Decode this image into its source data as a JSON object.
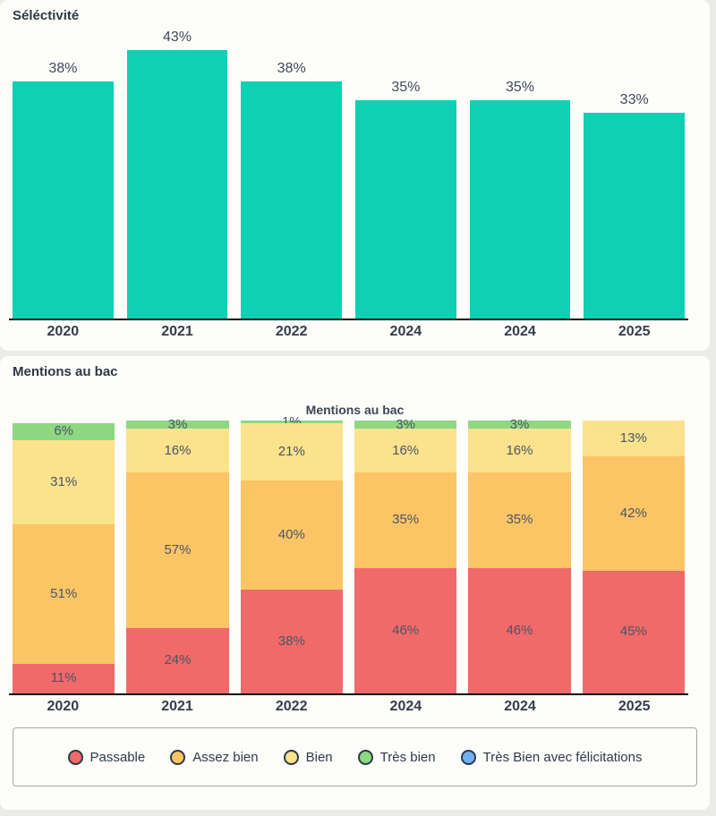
{
  "colors": {
    "page_background": "#ebebe9",
    "card_background": "#fdfdfa",
    "teal": "#0fd0b3",
    "red": "#f06a6a",
    "orange": "#fbc566",
    "yellow": "#fce28c",
    "green": "#8fd783",
    "blue": "#6fb1f1",
    "axis": "#0a0a0a",
    "value_label": "#4b5563",
    "year_label": "#333d4c"
  },
  "selectivity_section": {
    "title": "Séléctivité"
  },
  "mentions_section": {
    "title": "Mentions au bac",
    "chart_title": "Mentions au bac"
  },
  "chart_data": [
    {
      "type": "bar",
      "title": "Séléctivité",
      "categories": [
        "2020",
        "2021",
        "2022",
        "2024",
        "2024",
        "2025"
      ],
      "values": [
        38,
        43,
        38,
        35,
        35,
        33
      ],
      "unit": "%",
      "bar_color": "#0fd0b3",
      "ylim": [
        0,
        43
      ],
      "grid": false,
      "data_labels": "above bars"
    },
    {
      "type": "bar",
      "stacked": true,
      "stack_mode": "percent",
      "title": "Mentions au bac",
      "categories": [
        "2020",
        "2021",
        "2022",
        "2024",
        "2024",
        "2025"
      ],
      "series": [
        {
          "name": "Passable",
          "color": "#f06a6a",
          "values": [
            11,
            24,
            38,
            46,
            46,
            45
          ]
        },
        {
          "name": "Assez bien",
          "color": "#fbc566",
          "values": [
            51,
            57,
            40,
            35,
            35,
            42
          ]
        },
        {
          "name": "Bien",
          "color": "#fce28c",
          "values": [
            31,
            16,
            21,
            16,
            16,
            13
          ]
        },
        {
          "name": "Très bien",
          "color": "#8fd783",
          "values": [
            6,
            3,
            1,
            3,
            3,
            0
          ]
        },
        {
          "name": "Très Bien avec félicitations",
          "color": "#6fb1f1",
          "values": [
            0,
            0,
            0,
            0,
            0,
            0
          ]
        }
      ],
      "unit": "%",
      "ylim": [
        0,
        100
      ],
      "grid": false,
      "data_labels": "inside segments",
      "legend_position": "bottom"
    }
  ],
  "legend": {
    "items": [
      {
        "label": "Passable",
        "color": "#f06a6a"
      },
      {
        "label": "Assez bien",
        "color": "#fbc566"
      },
      {
        "label": "Bien",
        "color": "#fce28c"
      },
      {
        "label": "Très bien",
        "color": "#8fd783"
      },
      {
        "label": "Très Bien avec félicitations",
        "color": "#6fb1f1"
      }
    ]
  }
}
